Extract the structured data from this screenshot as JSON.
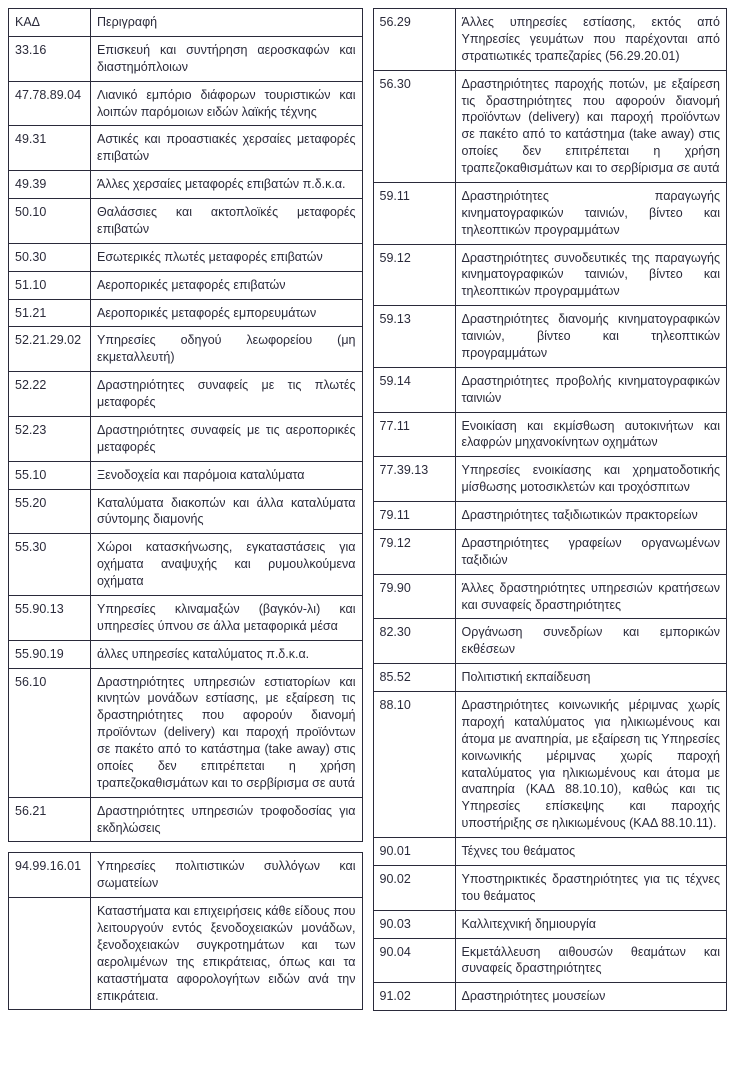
{
  "header": {
    "code": "ΚΑΔ",
    "desc": "Περιγραφή"
  },
  "left": {
    "table1_rows": [
      {
        "code": "33.16",
        "desc": "Επισκευή και συντήρηση αεροσκαφών και διαστημόπλοιων"
      },
      {
        "code": "47.78.89.04",
        "desc": "Λιανικό εμπόριο διάφορων τουριστικών και λοιπών παρόμοιων ειδών λαϊκής τέχνης"
      },
      {
        "code": "49.31",
        "desc": "Αστικές και προαστιακές χερσαίες μεταφορές επιβατών"
      },
      {
        "code": "49.39",
        "desc": "Άλλες χερσαίες μεταφορές επιβατών π.δ.κ.α."
      },
      {
        "code": "50.10",
        "desc": "Θαλάσσιες και ακτοπλοϊκές μεταφορές επιβατών"
      },
      {
        "code": "50.30",
        "desc": "Εσωτερικές πλωτές μεταφορές επιβατών"
      },
      {
        "code": "51.10",
        "desc": "Αεροπορικές μεταφορές επιβατών"
      },
      {
        "code": "51.21",
        "desc": "Αεροπορικές μεταφορές εμπορευμάτων"
      },
      {
        "code": "52.21.29.02",
        "desc": "Υπηρεσίες οδηγού λεωφορείου (μη εκμεταλλευτή)"
      },
      {
        "code": "52.22",
        "desc": "Δραστηριότητες συναφείς με τις πλωτές μεταφορές"
      },
      {
        "code": "52.23",
        "desc": "Δραστηριότητες συναφείς με τις αεροπορικές μεταφορές"
      },
      {
        "code": "55.10",
        "desc": "Ξενοδοχεία και παρόμοια καταλύματα"
      },
      {
        "code": "55.20",
        "desc": "Καταλύματα διακοπών και άλλα καταλύματα σύντομης διαμονής"
      },
      {
        "code": "55.30",
        "desc": "Χώροι κατασκήνωσης, εγκαταστάσεις για οχήματα αναψυχής και ρυμουλκούμενα οχήματα"
      },
      {
        "code": "55.90.13",
        "desc": "Υπηρεσίες κλιναμαξών (βαγκόν-λι) και υπηρεσίες ύπνου σε άλλα μεταφορικά μέσα"
      },
      {
        "code": "55.90.19",
        "desc": "άλλες υπηρεσίες καταλύματος π.δ.κ.α."
      },
      {
        "code": "56.10",
        "desc": "Δραστηριότητες υπηρεσιών εστιατορίων και κινητών μονάδων εστίασης, με εξαίρεση τις δραστηριότητες που αφορούν διανομή προϊόντων (delivery) και παροχή προϊόντων σε πακέτο από το κατάστημα (take away) στις οποίες δεν επιτρέπεται η χρήση τραπεζοκαθισμάτων και το σερβίρισμα σε αυτά"
      },
      {
        "code": "56.21",
        "desc": "Δραστηριότητες υπηρεσιών τροφοδοσίας για εκδηλώσεις"
      }
    ],
    "table2_rows": [
      {
        "code": "94.99.16.01",
        "desc": "Υπηρεσίες πολιτιστικών συλλόγων και σωματείων"
      },
      {
        "code": "",
        "desc": "Καταστήματα και επιχειρήσεις κάθε είδους που λειτουργούν εντός ξενοδοχειακών μονάδων, ξενοδοχειακών συγκροτημάτων και των αερολιμένων της επικράτειας, όπως και τα καταστήματα αφορολογήτων ειδών ανά την επικράτεια."
      }
    ]
  },
  "right": {
    "rows": [
      {
        "code": "56.29",
        "desc": "Άλλες υπηρεσίες εστίασης, εκτός από Υπηρεσίες γευμάτων που παρέχονται από στρατιωτικές τραπεζαρίες (56.29.20.01)"
      },
      {
        "code": "56.30",
        "desc": "Δραστηριότητες παροχής ποτών, με εξαίρεση τις δραστηριότητες που αφορούν διανομή προϊόντων (delivery) και παροχή προϊόντων σε πακέτο από το κατάστημα (take away) στις οποίες δεν επιτρέπεται η χρήση τραπεζοκαθισμάτων και το σερβίρισμα σε αυτά"
      },
      {
        "code": "59.11",
        "desc": "Δραστηριότητες παραγωγής κινηματογραφικών ταινιών, βίντεο και τηλεοπτικών προγραμμάτων"
      },
      {
        "code": "59.12",
        "desc": "Δραστηριότητες συνοδευτικές της παραγωγής κινηματογραφικών ταινιών, βίντεο και τηλεοπτικών προγραμμάτων"
      },
      {
        "code": "59.13",
        "desc": "Δραστηριότητες διανομής κινηματογραφικών ταινιών, βίντεο και τηλεοπτικών προγραμμάτων"
      },
      {
        "code": "59.14",
        "desc": "Δραστηριότητες προβολής κινηματογραφικών ταινιών"
      },
      {
        "code": "77.11",
        "desc": "Ενοικίαση και εκμίσθωση αυτοκινήτων και ελαφρών μηχανοκίνητων οχημάτων"
      },
      {
        "code": "77.39.13",
        "desc": "Υπηρεσίες ενοικίασης και χρηματοδοτικής μίσθωσης μοτοσικλετών και τροχόσπιτων"
      },
      {
        "code": "79.11",
        "desc": "Δραστηριότητες ταξιδιωτικών πρακτορείων"
      },
      {
        "code": "79.12",
        "desc": "Δραστηριότητες γραφείων οργανωμένων ταξιδιών"
      },
      {
        "code": "79.90",
        "desc": "Άλλες δραστηριότητες υπηρεσιών κρατήσεων και συναφείς δραστηριότητες"
      },
      {
        "code": "82.30",
        "desc": "Οργάνωση συνεδρίων και εμπορικών εκθέσεων"
      },
      {
        "code": "85.52",
        "desc": "Πολιτιστική εκπαίδευση"
      },
      {
        "code": "88.10",
        "desc": "Δραστηριότητες κοινωνικής μέριμνας χωρίς παροχή καταλύματος για ηλικιωμένους και άτομα με αναπηρία, με εξαίρεση τις Υπηρεσίες κοινωνικής μέριμνας χωρίς παροχή καταλύματος για ηλικιωμένους και άτομα με αναπηρία (ΚΑΔ 88.10.10), καθώς και τις Υπηρεσίες επίσκεψης και παροχής υποστήριξης σε ηλικιωμένους (ΚΑΔ 88.10.11)."
      },
      {
        "code": "90.01",
        "desc": "Τέχνες του θεάματος"
      },
      {
        "code": "90.02",
        "desc": "Υποστηρικτικές δραστηριότητες για τις τέχνες του θεάματος"
      },
      {
        "code": "90.03",
        "desc": "Καλλιτεχνική δημιουργία"
      },
      {
        "code": "90.04",
        "desc": "Εκμετάλλευση αιθουσών θεαμάτων και συναφείς δραστηριότητες"
      },
      {
        "code": "91.02",
        "desc": "Δραστηριότητες μουσείων"
      }
    ]
  }
}
